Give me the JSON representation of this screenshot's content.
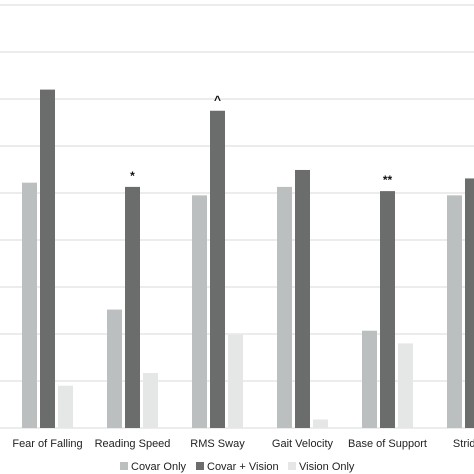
{
  "chart_data": {
    "type": "bar",
    "categories": [
      "Fear of Falling",
      "Reading Speed",
      "RMS Sway",
      "Gait Velocity",
      "Base of Support",
      "Stride V"
    ],
    "series": [
      {
        "name": "Covar Only",
        "color": "#bcbfbf",
        "values": [
          0.58,
          0.28,
          0.55,
          0.57,
          0.23,
          0.55
        ]
      },
      {
        "name": "Covar + Vision",
        "color": "#6b6d6d",
        "values": [
          0.8,
          0.57,
          0.75,
          0.61,
          0.56,
          0.59
        ]
      },
      {
        "name": "Vision Only",
        "color": "#e5e6e6",
        "values": [
          0.1,
          0.13,
          0.22,
          0.02,
          0.2,
          null
        ]
      }
    ],
    "annotations": [
      "",
      "*",
      "^",
      "",
      "**",
      ""
    ],
    "ylim": [
      0,
      1
    ],
    "grid": true,
    "legend": "bottom"
  }
}
